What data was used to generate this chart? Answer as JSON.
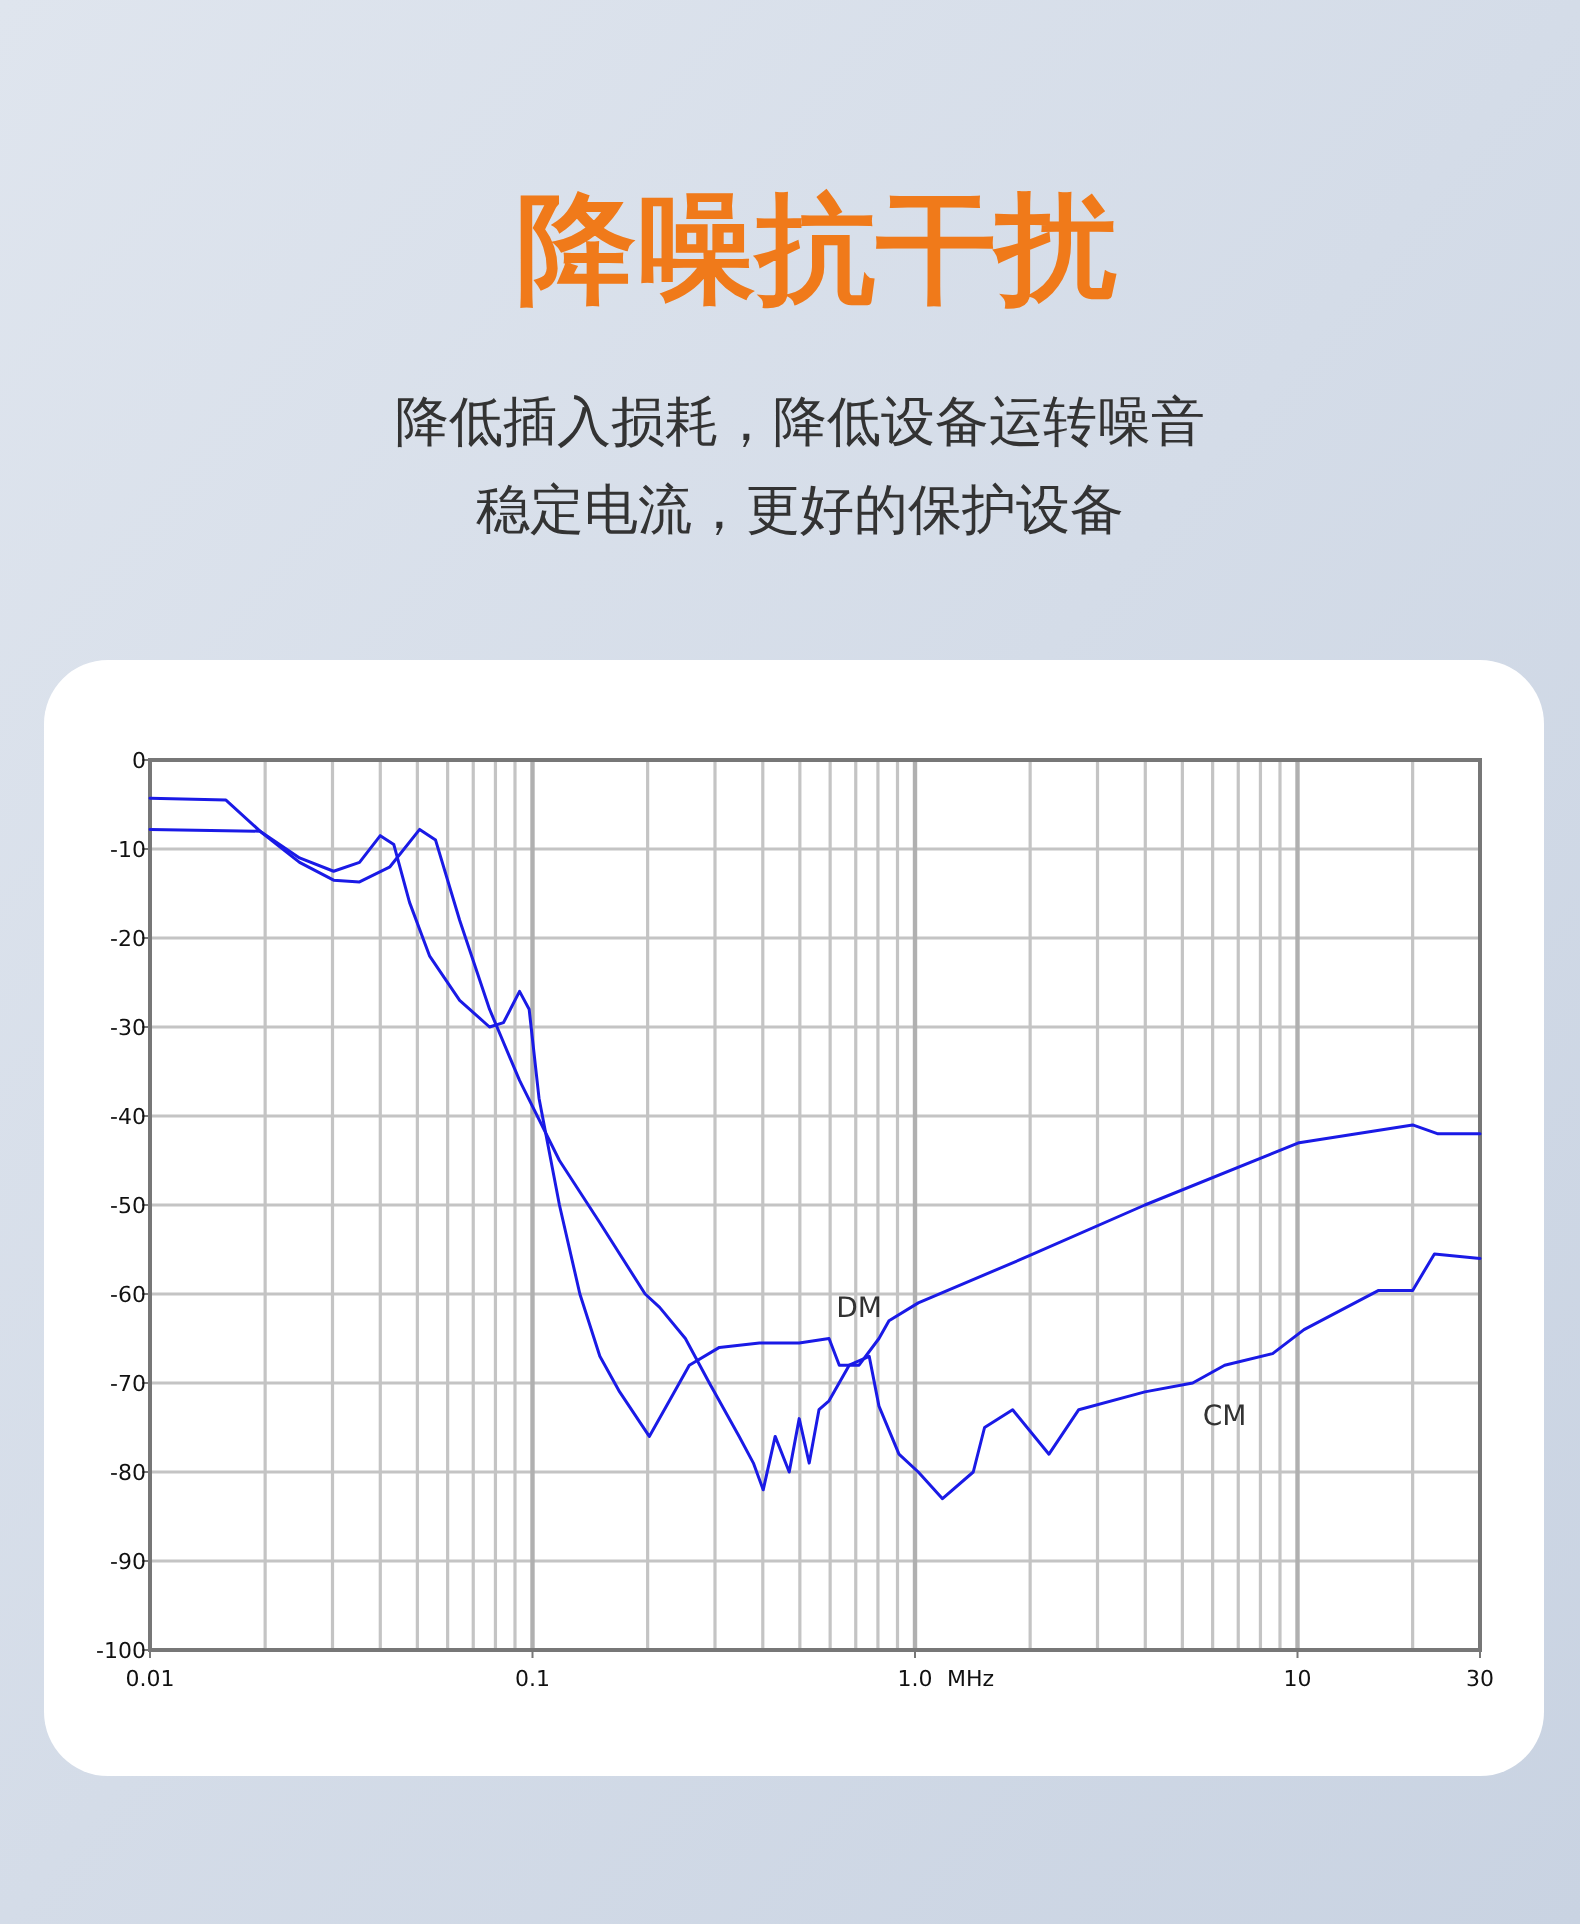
{
  "chart_data": {
    "type": "line",
    "title": "降噪抗干扰",
    "subtitle": "降低插入损耗，降低设备运转噪音",
    "annotations": [
      "稳定电流，更好的保护设备"
    ],
    "xlabel": "MHz",
    "log": "x",
    "xlim": [
      0.01,
      30
    ],
    "xticks": [
      0.01,
      0.1,
      {
        "value": 1,
        "label": "1.0"
      },
      10,
      30
    ],
    "ylim": [
      -100,
      0
    ],
    "yticks": [
      -100,
      -90,
      -80,
      -70,
      -60,
      -50,
      -40,
      -30,
      -20,
      -10,
      0
    ],
    "grid": true,
    "marker": "none",
    "line_style": "solid",
    "series": [
      {
        "name": "DM",
        "color": "#1a1ae6",
        "x": [
          0.01,
          0.0158,
          0.0194,
          0.0246,
          0.0302,
          0.0353,
          0.04,
          0.0434,
          0.0477,
          0.0538,
          0.0645,
          0.0772,
          0.084,
          0.0925,
          0.098,
          0.104,
          0.1176,
          0.133,
          0.15,
          0.169,
          0.202,
          0.228,
          0.257,
          0.308,
          0.392,
          0.498,
          0.596,
          0.634,
          0.714,
          0.805,
          0.855,
          1.02,
          1.99,
          3.99,
          10.1,
          20.0,
          23.3,
          30
        ],
        "values": [
          -4.3,
          -4.5,
          -8,
          -11,
          -12.5,
          -11.5,
          -8.5,
          -9.5,
          -16,
          -22,
          -27,
          -30,
          -29.5,
          -26,
          -28,
          -38,
          -50,
          -60,
          -67,
          -71,
          -76,
          -72,
          -68,
          -66,
          -65.5,
          -65.5,
          -65,
          -68,
          -68,
          -65,
          -63,
          -61,
          -55.7,
          -50,
          -43,
          -41,
          -42,
          -42
        ]
      },
      {
        "name": "CM",
        "color": "#1a1ae6",
        "x": [
          0.01,
          0.0194,
          0.0246,
          0.0302,
          0.0353,
          0.0424,
          0.0507,
          0.0558,
          0.0645,
          0.0772,
          0.0925,
          0.1176,
          0.15,
          0.197,
          0.215,
          0.251,
          0.29,
          0.347,
          0.378,
          0.401,
          0.431,
          0.469,
          0.498,
          0.529,
          0.561,
          0.596,
          0.673,
          0.759,
          0.805,
          0.908,
          1.02,
          1.18,
          1.42,
          1.52,
          1.8,
          2.24,
          2.68,
          3.99,
          5.32,
          6.45,
          8.61,
          10.4,
          16.3,
          20.0,
          22.8,
          30
        ],
        "values": [
          -7.8,
          -8,
          -11.5,
          -13.5,
          -13.7,
          -12,
          -7.8,
          -9,
          -18,
          -28,
          -36,
          -45,
          -52,
          -60,
          -61.5,
          -65,
          -70,
          -76,
          -79,
          -82,
          -76,
          -80,
          -74,
          -79,
          -73,
          -72,
          -68,
          -67,
          -72.6,
          -78,
          -80,
          -83,
          -80,
          -75,
          -73,
          -78,
          -73,
          -71,
          -70,
          -68,
          -66.7,
          -64,
          -59.6,
          -59.6,
          -55.5,
          -56
        ]
      }
    ]
  }
}
